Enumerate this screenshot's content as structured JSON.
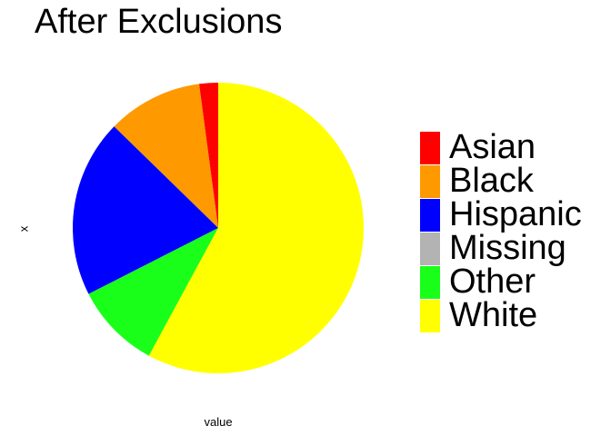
{
  "chart_data": {
    "type": "pie",
    "title": "After Exclusions",
    "xlabel": "value",
    "ylabel": "x",
    "legend_position": "right",
    "start_angle_deg": 0,
    "direction": "counterclockwise",
    "slices": [
      {
        "label": "Asian",
        "value": 2.1,
        "color": "#ff0000"
      },
      {
        "label": "Black",
        "value": 10.6,
        "color": "#ff9900"
      },
      {
        "label": "Hispanic",
        "value": 19.8,
        "color": "#0000ff"
      },
      {
        "label": "Missing",
        "value": 0,
        "color": "#b3b3b3"
      },
      {
        "label": "Other",
        "value": 9.6,
        "color": "#1aff1a"
      },
      {
        "label": "White",
        "value": 57.9,
        "color": "#ffff00"
      }
    ]
  }
}
